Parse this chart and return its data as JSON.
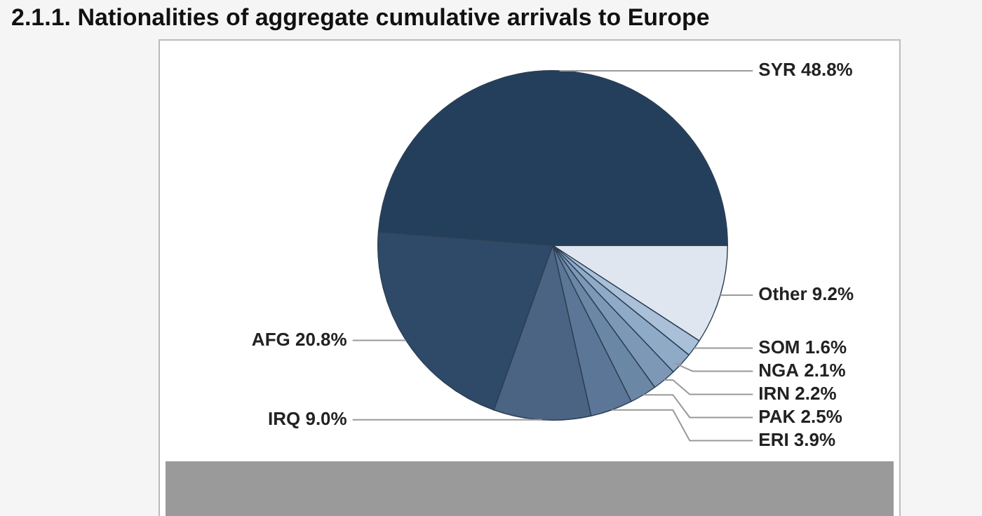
{
  "chart_data": {
    "type": "pie",
    "title": "2.1.1. Nationalities of aggregate cumulative arrivals to Europe",
    "categories": [
      "Other",
      "SOM",
      "NGA",
      "IRN",
      "PAK",
      "ERI",
      "IRQ",
      "AFG",
      "SYR"
    ],
    "values": [
      9.2,
      1.6,
      2.1,
      2.2,
      2.5,
      3.9,
      9.0,
      20.8,
      48.8
    ],
    "colors": [
      "#dfe6ef",
      "#a9c0d8",
      "#8eaac7",
      "#7d98b6",
      "#6b87a6",
      "#5b7696",
      "#4b6483",
      "#2f4a68",
      "#243f5c"
    ],
    "value_labels": [
      "9.2%",
      "1.6%",
      "2.1%",
      "2.2%",
      "2.5%",
      "3.9%",
      "9.0%",
      "20.8%",
      "48.8%"
    ],
    "legend": false
  }
}
